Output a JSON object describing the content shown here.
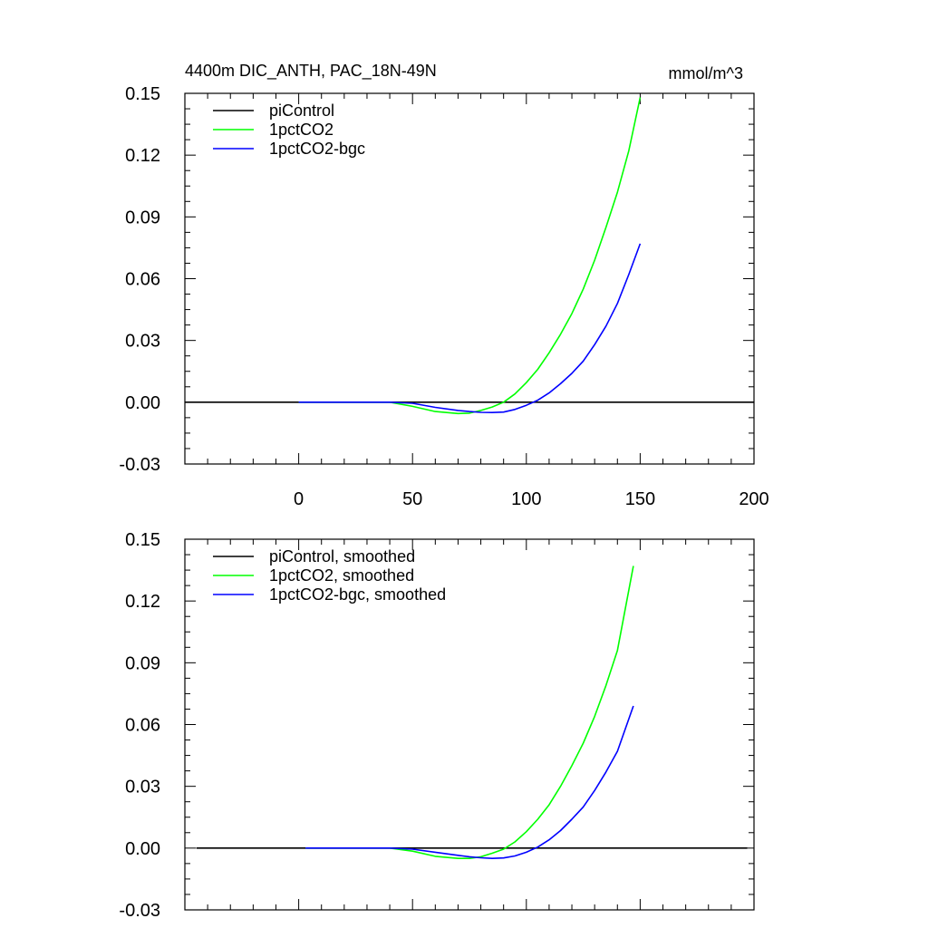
{
  "chart_data": [
    {
      "type": "line",
      "title_left": "4400m DIC_ANTH, PAC_18N-49N",
      "title_right": "mmol/m^3",
      "xlabel": "",
      "ylabel": "",
      "xlim": [
        -50,
        200
      ],
      "ylim": [
        -0.03,
        0.15
      ],
      "x_ticks": [
        0,
        50,
        100,
        150,
        200
      ],
      "x_tick_labels": [
        "0",
        "50",
        "100",
        "150",
        "200"
      ],
      "y_ticks": [
        -0.03,
        0,
        0.03,
        0.06,
        0.09,
        0.12,
        0.15
      ],
      "y_tick_labels": [
        "-0.03",
        "0.00",
        "0.03",
        "0.06",
        "0.09",
        "0.12",
        "0.15"
      ],
      "grid": false,
      "legend_position": "top-left",
      "series": [
        {
          "name": "piControl",
          "color": "#000000",
          "x": [
            -50,
            200
          ],
          "y": [
            0,
            0
          ]
        },
        {
          "name": "1pctCO2",
          "color": "#00ff00",
          "x": [
            0,
            20,
            40,
            50,
            60,
            70,
            75,
            80,
            85,
            90,
            95,
            100,
            105,
            110,
            115,
            120,
            125,
            130,
            135,
            140,
            145,
            150
          ],
          "y": [
            0,
            0,
            0,
            -0.002,
            -0.0045,
            -0.0055,
            -0.0053,
            -0.004,
            -0.0023,
            0,
            0.004,
            0.0095,
            0.016,
            0.024,
            0.033,
            0.043,
            0.055,
            0.069,
            0.085,
            0.102,
            0.122,
            0.148
          ]
        },
        {
          "name": "1pctCO2-bgc",
          "color": "#0000ff",
          "x": [
            0,
            20,
            40,
            50,
            60,
            70,
            75,
            80,
            85,
            90,
            95,
            100,
            105,
            110,
            115,
            120,
            125,
            130,
            135,
            140,
            145,
            150
          ],
          "y": [
            0,
            0,
            0,
            -0.0005,
            -0.0025,
            -0.004,
            -0.0045,
            -0.0049,
            -0.005,
            -0.0048,
            -0.0035,
            -0.0015,
            0.001,
            0.0045,
            0.009,
            0.014,
            0.02,
            0.028,
            0.037,
            0.048,
            0.062,
            0.077
          ]
        }
      ]
    },
    {
      "type": "line",
      "title_left": "",
      "title_right": "",
      "xlabel": "",
      "ylabel": "",
      "xlim": [
        -50,
        200
      ],
      "ylim": [
        -0.03,
        0.15
      ],
      "x_ticks": [
        0,
        50,
        100,
        150,
        200
      ],
      "x_tick_labels": [],
      "y_ticks": [
        -0.03,
        0,
        0.03,
        0.06,
        0.09,
        0.12,
        0.15
      ],
      "y_tick_labels": [
        "-0.03",
        "0.00",
        "0.03",
        "0.06",
        "0.09",
        "0.12",
        "0.15"
      ],
      "grid": false,
      "legend_position": "top-left",
      "series": [
        {
          "name": "piControl, smoothed",
          "color": "#000000",
          "x": [
            -45,
            197
          ],
          "y": [
            0,
            0
          ]
        },
        {
          "name": "1pctCO2, smoothed",
          "color": "#00ff00",
          "x": [
            3,
            20,
            40,
            50,
            60,
            70,
            75,
            80,
            85,
            90,
            95,
            100,
            105,
            110,
            115,
            120,
            125,
            130,
            135,
            140,
            147
          ],
          "y": [
            0,
            0,
            0,
            -0.0015,
            -0.004,
            -0.005,
            -0.005,
            -0.0042,
            -0.0025,
            -0.0005,
            0.003,
            0.008,
            0.014,
            0.021,
            0.03,
            0.04,
            0.051,
            0.064,
            0.079,
            0.096,
            0.137
          ]
        },
        {
          "name": "1pctCO2-bgc, smoothed",
          "color": "#0000ff",
          "x": [
            3,
            20,
            40,
            50,
            60,
            70,
            75,
            80,
            85,
            90,
            95,
            100,
            105,
            110,
            115,
            120,
            125,
            130,
            135,
            140,
            147
          ],
          "y": [
            0,
            0,
            0,
            -0.0005,
            -0.002,
            -0.0035,
            -0.0042,
            -0.0047,
            -0.005,
            -0.0048,
            -0.0038,
            -0.002,
            0.0005,
            0.004,
            0.0085,
            0.014,
            0.02,
            0.028,
            0.037,
            0.047,
            0.069
          ]
        }
      ]
    }
  ]
}
